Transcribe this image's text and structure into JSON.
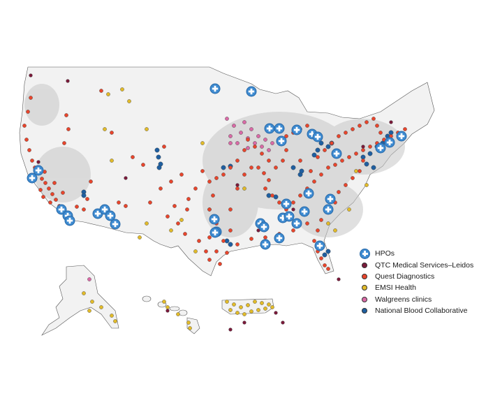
{
  "legend": {
    "items": [
      {
        "key": "hpo",
        "label": "HPOs",
        "color": "#3d8ad0"
      },
      {
        "key": "qtc",
        "label": "QTC Medical Services–Leidos",
        "color": "#7a1a3a"
      },
      {
        "key": "quest",
        "label": "Quest Diagnostics",
        "color": "#e8452c"
      },
      {
        "key": "emsi",
        "label": "EMSI Health",
        "color": "#e2bb2a"
      },
      {
        "key": "walgreens",
        "label": "Walgreens clinics",
        "color": "#d96aa6"
      },
      {
        "key": "nbc",
        "label": "National Blood Collaborative",
        "color": "#1f5fa0"
      }
    ]
  },
  "map": {
    "regions": [
      "Contiguous United States",
      "Alaska",
      "Hawaii",
      "Puerto Rico"
    ],
    "land_fill": "#f2f2f2",
    "density_shading": "#cfcfcf",
    "outline": "#555555"
  }
}
